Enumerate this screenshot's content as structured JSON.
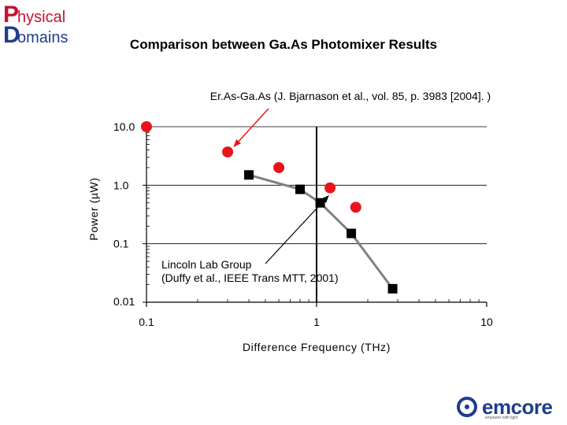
{
  "header": {
    "logo_letter_1": "P",
    "logo_rest_1": "hysical",
    "logo_letter_2": "D",
    "logo_rest_2": "omains",
    "title": "Comparison between Ga.As Photomixer Results"
  },
  "footer": {
    "logo_word": "emcore",
    "logo_tagline": "empower with light"
  },
  "chart_data": {
    "type": "scatter",
    "title": "Comparison between Ga.As Photomixer Results",
    "xlabel": "Difference Frequency (THz)",
    "ylabel": "Power (µW)",
    "x_scale": "log",
    "y_scale": "log",
    "xlim": [
      0.1,
      10
    ],
    "ylim": [
      0.01,
      10
    ],
    "x_ticks": [
      0.1,
      1,
      10
    ],
    "x_tick_labels": [
      "0.1",
      "1",
      "10"
    ],
    "y_ticks": [
      0.01,
      0.1,
      1,
      10
    ],
    "y_tick_labels": [
      "0.01",
      "0.1",
      "1.0",
      "10.0"
    ],
    "grid": true,
    "series": [
      {
        "name": "Er.As-Ga.As (J. Bjarnason et al., vol. 85, p. 3983 [2004]. )",
        "marker": "circle",
        "color": "#e8141a",
        "line": false,
        "x": [
          0.1,
          0.3,
          0.6,
          1.2,
          1.7
        ],
        "y": [
          10.0,
          3.7,
          2.0,
          0.9,
          0.42
        ]
      },
      {
        "name": "Lincoln Lab Group (Duffy et al., IEEE Trans MTT, 2001)",
        "marker": "square",
        "color": "#000000",
        "line": true,
        "line_color": "#808080",
        "x": [
          0.4,
          0.8,
          1.05,
          1.6,
          2.8
        ],
        "y": [
          1.5,
          0.85,
          0.5,
          0.15,
          0.017
        ]
      }
    ],
    "annotations": [
      {
        "label_line_1": "Er.As-Ga.As (J. Bjarnason et al., vol. 85, p. 3983 [2004]. )",
        "label_line_2": "",
        "points_to": {
          "x": 0.3,
          "y": 3.7
        }
      },
      {
        "label_line_1": "Lincoln Lab Group",
        "label_line_2": "(Duffy et al., IEEE Trans MTT, 2001)",
        "points_to": {
          "x": 1.2,
          "y": 0.9
        }
      }
    ]
  }
}
